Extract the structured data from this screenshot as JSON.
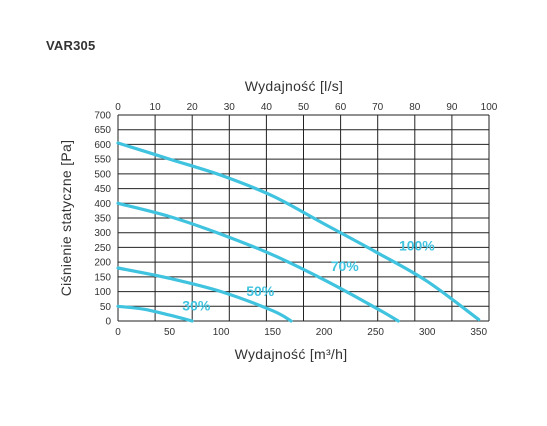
{
  "page": {
    "title": "VAR305"
  },
  "chart_data": {
    "type": "line",
    "title": "VAR305",
    "xlabel": "Wydajność [m³/h]",
    "x2label": "Wydajność [l/s]",
    "ylabel": "Ciśnienie statyczne [Pa]",
    "xlim": [
      0,
      360
    ],
    "x2lim": [
      0,
      100
    ],
    "ylim": [
      0,
      700
    ],
    "x_ticks": [
      0,
      50,
      100,
      150,
      200,
      250,
      300,
      350
    ],
    "x2_ticks": [
      0,
      10,
      20,
      30,
      40,
      50,
      60,
      70,
      80,
      90,
      100
    ],
    "y_ticks": [
      0,
      50,
      100,
      150,
      200,
      250,
      300,
      350,
      400,
      450,
      500,
      550,
      600,
      650,
      700
    ],
    "grid": true,
    "line_color": "#3FC3DF",
    "series": [
      {
        "name": "100%",
        "x": [
          0,
          50,
          100,
          150,
          200,
          250,
          300,
          350
        ],
        "y": [
          605,
          550,
          495,
          425,
          330,
          235,
          135,
          5
        ]
      },
      {
        "name": "70%",
        "x": [
          0,
          50,
          100,
          150,
          200,
          250,
          272
        ],
        "y": [
          400,
          355,
          295,
          225,
          140,
          45,
          0
        ]
      },
      {
        "name": "50%",
        "x": [
          0,
          50,
          100,
          150,
          168
        ],
        "y": [
          180,
          145,
          100,
          35,
          0
        ]
      },
      {
        "name": "30%",
        "x": [
          0,
          25,
          50,
          72
        ],
        "y": [
          50,
          40,
          20,
          0
        ]
      }
    ],
    "labels": [
      {
        "text": "100%",
        "x": 290,
        "y": 240
      },
      {
        "text": "70%",
        "x": 220,
        "y": 170
      },
      {
        "text": "50%",
        "x": 138,
        "y": 85
      },
      {
        "text": "30%",
        "x": 76,
        "y": 35
      }
    ]
  }
}
